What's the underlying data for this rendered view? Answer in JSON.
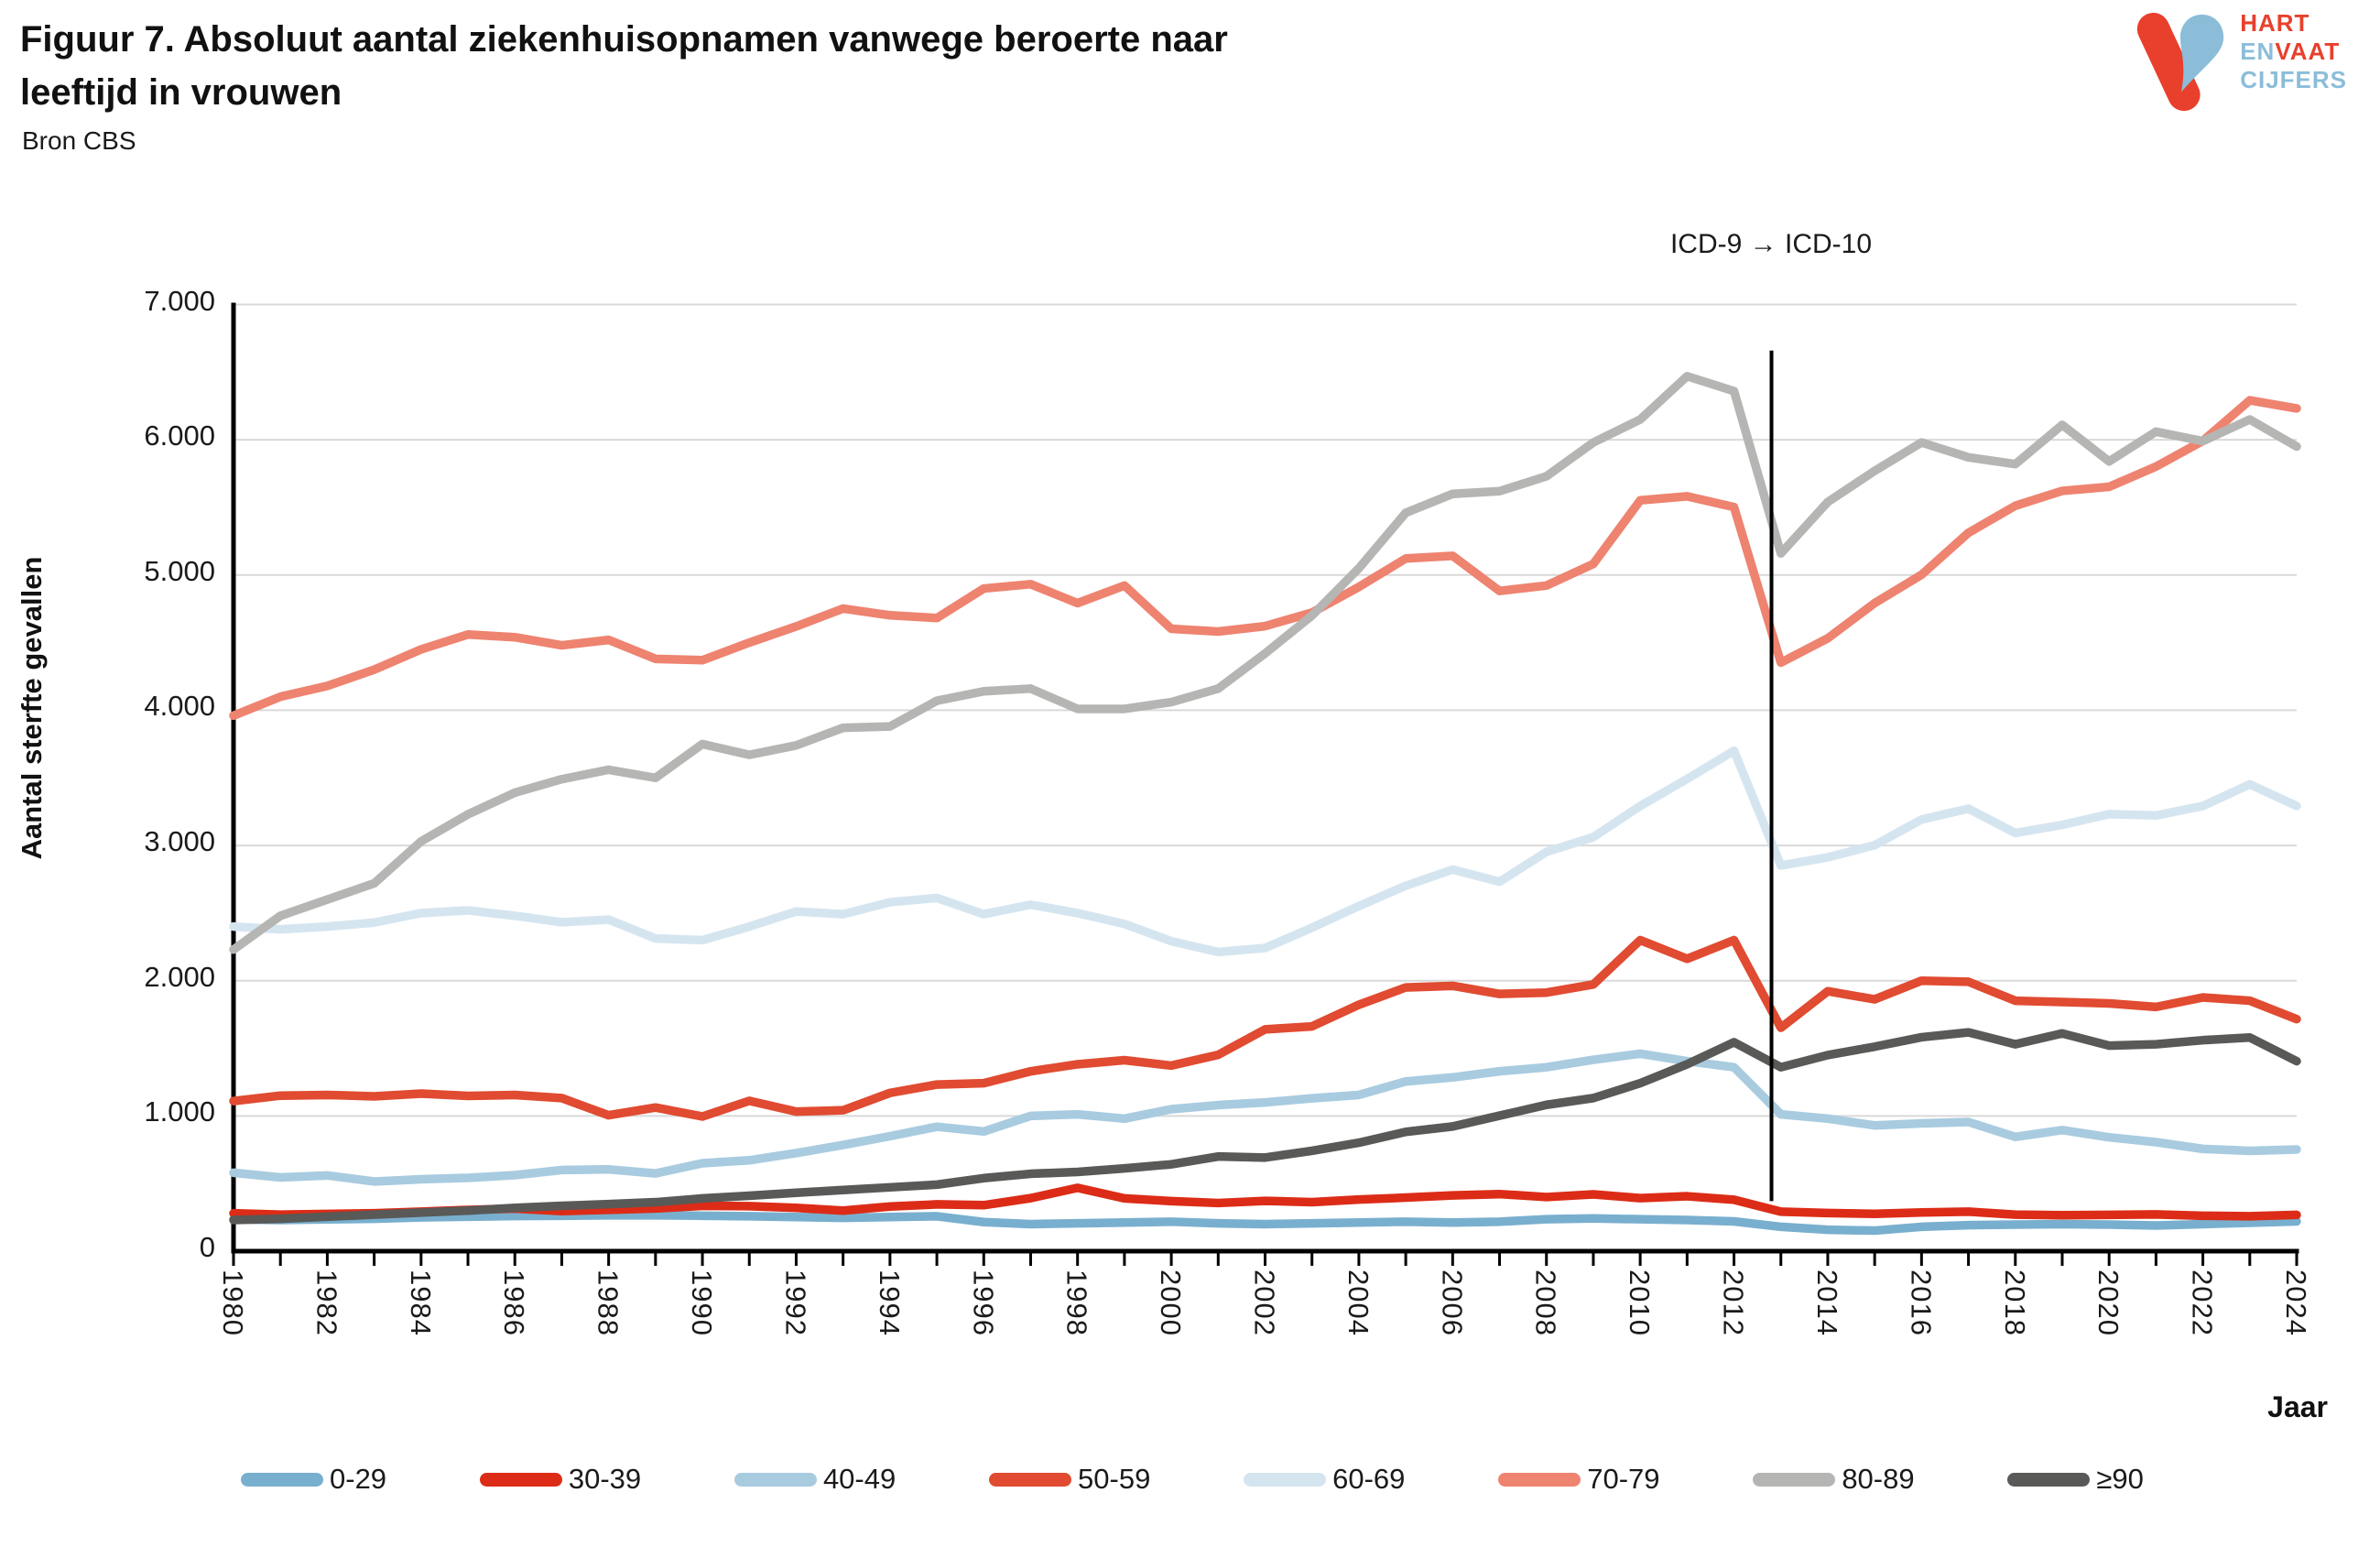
{
  "header": {
    "title_line1": "Figuur 7. Absoluut aantal ziekenhuisopnamen vanwege beroerte naar",
    "title_line2": "leeftijd in vrouwen",
    "source": "Bron CBS"
  },
  "logo": {
    "word1": "HART",
    "word2a": "EN",
    "word2b": "VAAT",
    "word3": "CIJFERS",
    "red": "#e8402c",
    "blue": "#8bbdd9"
  },
  "chart_data": {
    "type": "line",
    "title": "Figuur 7. Absoluut aantal ziekenhuisopnamen vanwege beroerte naar leeftijd in vrouwen",
    "source": "Bron CBS",
    "xlabel": "Jaar",
    "ylabel": "Aantal sterfte gevallen",
    "ylim": [
      0,
      7000
    ],
    "ytick_labels": [
      "0",
      "1.000",
      "2.000",
      "3.000",
      "4.000",
      "5.000",
      "6.000",
      "7.000"
    ],
    "xtick_label_every": 2,
    "grid": "horizontal",
    "legend_position": "bottom",
    "annotation": {
      "text": "ICD-9 → ICD-10",
      "year": 2012.8,
      "line_top_value": 6660,
      "line_bottom_value": 370
    },
    "style": {
      "grid_color": "#d9d9d9",
      "axis_color": "#000000",
      "annotation_line_color": "#000000",
      "line_width": 9.5
    },
    "years": [
      1980,
      1981,
      1982,
      1983,
      1984,
      1985,
      1986,
      1987,
      1988,
      1989,
      1990,
      1991,
      1992,
      1993,
      1994,
      1995,
      1996,
      1997,
      1998,
      1999,
      2000,
      2001,
      2002,
      2003,
      2004,
      2005,
      2006,
      2007,
      2008,
      2009,
      2010,
      2011,
      2012,
      2013,
      2014,
      2015,
      2016,
      2017,
      2018,
      2019,
      2020,
      2021,
      2022,
      2023,
      2024
    ],
    "series": [
      {
        "name": "0-29",
        "color": "#79afce",
        "values": [
          235,
          230,
          235,
          240,
          250,
          255,
          260,
          262,
          265,
          265,
          262,
          258,
          252,
          246,
          252,
          258,
          215,
          200,
          206,
          212,
          218,
          206,
          200,
          206,
          212,
          218,
          212,
          218,
          236,
          242,
          236,
          230,
          220,
          180,
          158,
          152,
          180,
          192,
          196,
          200,
          196,
          190,
          200,
          210,
          220
        ]
      },
      {
        "name": "30-39",
        "color": "#dc2c17",
        "values": [
          280,
          270,
          275,
          280,
          292,
          305,
          315,
          296,
          306,
          316,
          335,
          333,
          320,
          300,
          330,
          346,
          340,
          392,
          468,
          390,
          370,
          356,
          372,
          362,
          382,
          396,
          412,
          422,
          400,
          420,
          392,
          406,
          380,
          292,
          282,
          276,
          286,
          292,
          270,
          266,
          268,
          272,
          262,
          258,
          268
        ]
      },
      {
        "name": "40-49",
        "color": "#a8cbdf",
        "values": [
          580,
          545,
          560,
          515,
          532,
          542,
          562,
          600,
          605,
          575,
          650,
          672,
          725,
          785,
          850,
          920,
          885,
          1000,
          1012,
          980,
          1050,
          1080,
          1100,
          1130,
          1155,
          1255,
          1285,
          1330,
          1360,
          1415,
          1460,
          1405,
          1360,
          1012,
          980,
          930,
          945,
          955,
          845,
          895,
          842,
          806,
          756,
          742,
          752
        ]
      },
      {
        "name": "50-59",
        "color": "#e04b31",
        "values": [
          1110,
          1150,
          1155,
          1145,
          1165,
          1148,
          1155,
          1132,
          1005,
          1062,
          996,
          1112,
          1032,
          1042,
          1170,
          1232,
          1242,
          1330,
          1382,
          1412,
          1372,
          1452,
          1640,
          1662,
          1822,
          1950,
          1962,
          1902,
          1912,
          1972,
          2300,
          2162,
          2300,
          1652,
          1922,
          1862,
          2000,
          1992,
          1852,
          1842,
          1832,
          1806,
          1876,
          1852,
          1716
        ]
      },
      {
        "name": "60-69",
        "color": "#d5e5f0",
        "values": [
          2400,
          2380,
          2400,
          2430,
          2500,
          2520,
          2480,
          2432,
          2452,
          2312,
          2300,
          2400,
          2512,
          2492,
          2580,
          2612,
          2492,
          2562,
          2500,
          2420,
          2292,
          2212,
          2242,
          2392,
          2552,
          2702,
          2822,
          2732,
          2952,
          3062,
          3292,
          3492,
          3700,
          2852,
          2912,
          3002,
          3192,
          3272,
          3092,
          3152,
          3232,
          3222,
          3292,
          3452,
          3292
        ]
      },
      {
        "name": "70-79",
        "color": "#ee8370",
        "values": [
          3960,
          4100,
          4180,
          4300,
          4450,
          4560,
          4540,
          4480,
          4520,
          4380,
          4370,
          4500,
          4620,
          4752,
          4702,
          4682,
          4900,
          4932,
          4792,
          4922,
          4602,
          4582,
          4622,
          4722,
          4912,
          5122,
          5142,
          4882,
          4922,
          5082,
          5552,
          5582,
          5502,
          4352,
          4532,
          4792,
          5002,
          5312,
          5512,
          5622,
          5652,
          5802,
          5992,
          6292,
          6232
        ]
      },
      {
        "name": "80-89",
        "color": "#b5b5b4",
        "values": [
          2230,
          2480,
          2600,
          2720,
          3030,
          3230,
          3390,
          3490,
          3560,
          3500,
          3750,
          3670,
          3740,
          3870,
          3880,
          4070,
          4140,
          4160,
          4010,
          4010,
          4060,
          4160,
          4420,
          4700,
          5050,
          5460,
          5600,
          5620,
          5730,
          5980,
          6150,
          6470,
          6360,
          5160,
          5540,
          5770,
          5980,
          5870,
          5820,
          6110,
          5840,
          6060,
          5990,
          6150,
          5950
        ]
      },
      {
        "name": "≥90",
        "color": "#595957",
        "values": [
          230,
          240,
          255,
          270,
          285,
          300,
          320,
          335,
          348,
          362,
          390,
          410,
          432,
          452,
          472,
          492,
          540,
          572,
          586,
          612,
          642,
          700,
          692,
          742,
          802,
          882,
          922,
          1002,
          1082,
          1132,
          1242,
          1382,
          1545,
          1360,
          1450,
          1512,
          1582,
          1618,
          1530,
          1610,
          1520,
          1530,
          1560,
          1580,
          1405
        ]
      }
    ]
  }
}
